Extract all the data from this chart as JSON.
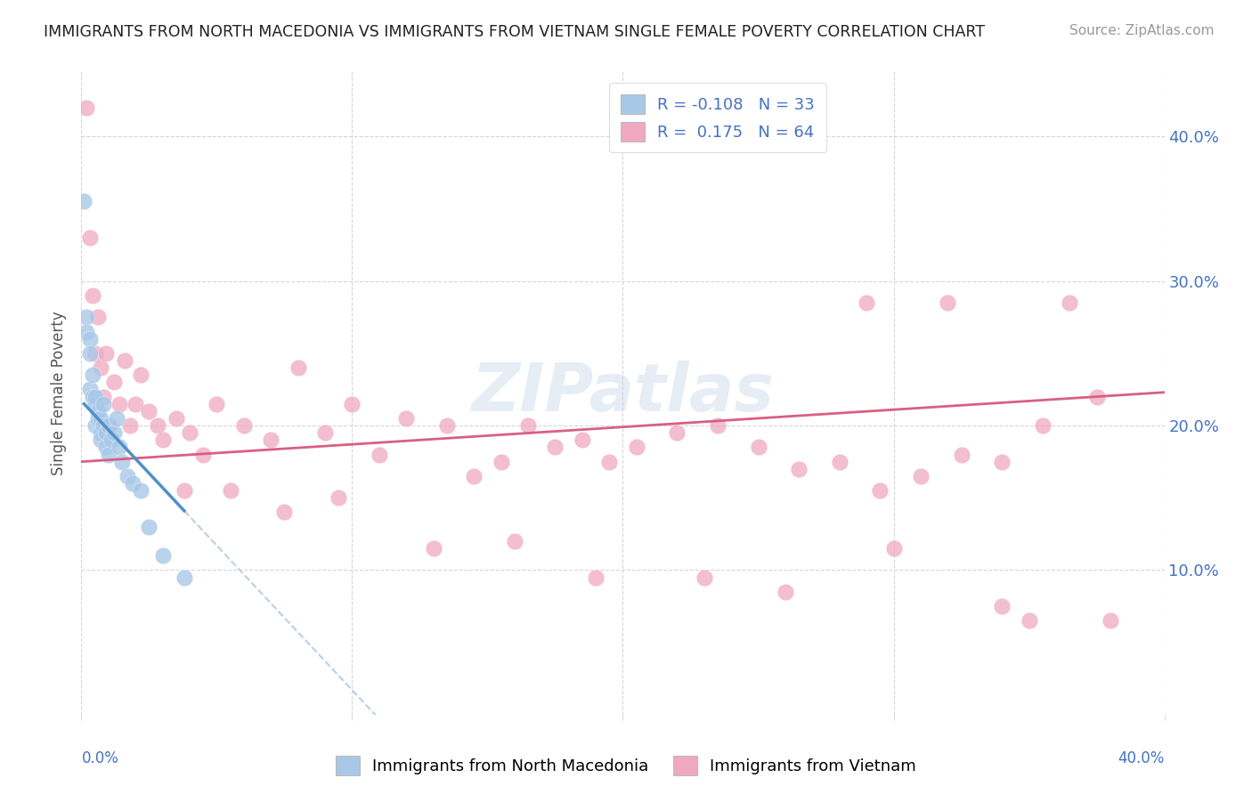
{
  "title": "IMMIGRANTS FROM NORTH MACEDONIA VS IMMIGRANTS FROM VIETNAM SINGLE FEMALE POVERTY CORRELATION CHART",
  "source": "Source: ZipAtlas.com",
  "ylabel": "Single Female Poverty",
  "xlim": [
    0.0,
    0.4
  ],
  "ylim": [
    0.0,
    0.445
  ],
  "yticks": [
    0.0,
    0.1,
    0.2,
    0.3,
    0.4
  ],
  "ytick_labels": [
    "",
    "10.0%",
    "20.0%",
    "30.0%",
    "40.0%"
  ],
  "bg_color": "#ffffff",
  "grid_color": "#cccccc",
  "watermark": "ZIPatlas",
  "color_blue": "#a8c8e8",
  "color_pink": "#f0a8c0",
  "color_blue_line": "#5090c8",
  "color_pink_line": "#d86080",
  "color_blue_dashed": "#b8d0e8",
  "legend_color": "#4472c4",
  "right_axis_color": "#4472c4",
  "nm_x": [
    0.001,
    0.002,
    0.002,
    0.003,
    0.003,
    0.003,
    0.004,
    0.004,
    0.005,
    0.005,
    0.005,
    0.006,
    0.006,
    0.007,
    0.007,
    0.007,
    0.008,
    0.008,
    0.009,
    0.009,
    0.01,
    0.01,
    0.011,
    0.012,
    0.013,
    0.014,
    0.015,
    0.017,
    0.019,
    0.022,
    0.025,
    0.03,
    0.038
  ],
  "nm_y": [
    0.355,
    0.275,
    0.265,
    0.26,
    0.25,
    0.225,
    0.235,
    0.22,
    0.215,
    0.2,
    0.22,
    0.21,
    0.205,
    0.195,
    0.19,
    0.205,
    0.2,
    0.215,
    0.195,
    0.185,
    0.18,
    0.2,
    0.19,
    0.195,
    0.205,
    0.185,
    0.175,
    0.165,
    0.16,
    0.155,
    0.13,
    0.11,
    0.095
  ],
  "vn_x": [
    0.002,
    0.003,
    0.004,
    0.005,
    0.006,
    0.007,
    0.008,
    0.009,
    0.01,
    0.012,
    0.014,
    0.016,
    0.018,
    0.02,
    0.022,
    0.025,
    0.028,
    0.03,
    0.035,
    0.04,
    0.045,
    0.05,
    0.06,
    0.07,
    0.08,
    0.09,
    0.1,
    0.11,
    0.12,
    0.135,
    0.145,
    0.155,
    0.165,
    0.175,
    0.185,
    0.195,
    0.205,
    0.22,
    0.235,
    0.25,
    0.265,
    0.28,
    0.295,
    0.31,
    0.325,
    0.34,
    0.355,
    0.365,
    0.375,
    0.038,
    0.055,
    0.075,
    0.095,
    0.13,
    0.16,
    0.19,
    0.23,
    0.26,
    0.3,
    0.34,
    0.29,
    0.32,
    0.35,
    0.38
  ],
  "vn_y": [
    0.42,
    0.33,
    0.29,
    0.25,
    0.275,
    0.24,
    0.22,
    0.25,
    0.2,
    0.23,
    0.215,
    0.245,
    0.2,
    0.215,
    0.235,
    0.21,
    0.2,
    0.19,
    0.205,
    0.195,
    0.18,
    0.215,
    0.2,
    0.19,
    0.24,
    0.195,
    0.215,
    0.18,
    0.205,
    0.2,
    0.165,
    0.175,
    0.2,
    0.185,
    0.19,
    0.175,
    0.185,
    0.195,
    0.2,
    0.185,
    0.17,
    0.175,
    0.155,
    0.165,
    0.18,
    0.175,
    0.2,
    0.285,
    0.22,
    0.155,
    0.155,
    0.14,
    0.15,
    0.115,
    0.12,
    0.095,
    0.095,
    0.085,
    0.115,
    0.075,
    0.285,
    0.285,
    0.065,
    0.065
  ]
}
